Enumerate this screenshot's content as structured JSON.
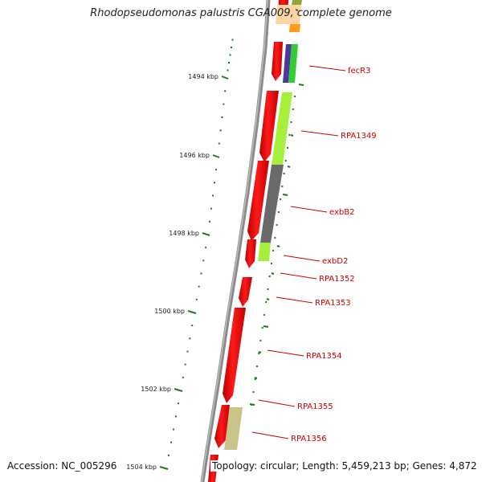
{
  "title": "Rhodopseudomonas palustris CGA009, complete genome",
  "footer": {
    "accession": "Accession: NC_005296",
    "topology": "Topology: circular; Length: 5,459,213 bp; Genes: 4,872"
  },
  "colors": {
    "backbone": "#808080",
    "forward_strand": "#ff0000",
    "tick": "#1e7a1e",
    "label": "#cc0000"
  },
  "ruler": [
    {
      "label": "1494 kbp",
      "kbp": 1494
    },
    {
      "label": "1496 kbp",
      "kbp": 1496
    },
    {
      "label": "1498 kbp",
      "kbp": 1498
    },
    {
      "label": "1500 kbp",
      "kbp": 1500
    },
    {
      "label": "1502 kbp",
      "kbp": 1502
    },
    {
      "label": "1504 kbp",
      "kbp": 1504
    }
  ],
  "gene_labels": [
    {
      "name": "fecR3"
    },
    {
      "name": "RPA1349"
    },
    {
      "name": "exbB2"
    },
    {
      "name": "exbD2"
    },
    {
      "name": "RPA1352"
    },
    {
      "name": "RPA1353"
    },
    {
      "name": "RPA1354"
    },
    {
      "name": "RPA1355"
    },
    {
      "name": "RPA1356"
    }
  ]
}
